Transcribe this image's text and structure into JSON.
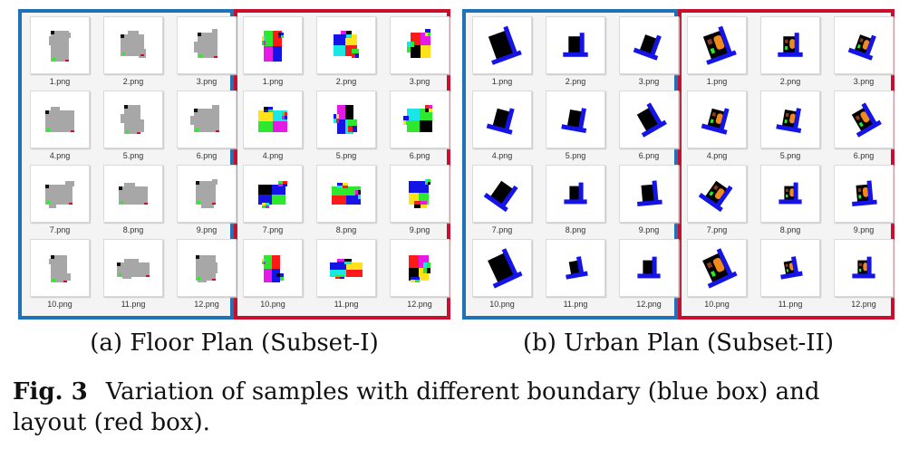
{
  "panel_a": {
    "caption": "(a) Floor Plan (Subset-I)",
    "boundary_group": {
      "frame_color": "#1f72b8",
      "files": [
        "1.png",
        "2.png",
        "3.png",
        "4.png",
        "5.png",
        "6.png",
        "7.png",
        "8.png",
        "9.png",
        "10.png",
        "11.png",
        "12.png"
      ]
    },
    "layout_group": {
      "frame_color": "#c8102e",
      "files": [
        "1.png",
        "2.png",
        "3.png",
        "4.png",
        "5.png",
        "6.png",
        "7.png",
        "8.png",
        "9.png",
        "10.png",
        "11.png",
        "12.png"
      ]
    }
  },
  "panel_b": {
    "caption": "(b) Urban Plan (Subset-II)",
    "boundary_group": {
      "frame_color": "#1f72b8",
      "files": [
        "1.png",
        "2.png",
        "3.png",
        "4.png",
        "5.png",
        "6.png",
        "7.png",
        "8.png",
        "9.png",
        "10.png",
        "11.png",
        "12.png"
      ]
    },
    "layout_group": {
      "frame_color": "#c8102e",
      "files": [
        "1.png",
        "2.png",
        "3.png",
        "4.png",
        "5.png",
        "6.png",
        "7.png",
        "8.png",
        "9.png",
        "10.png",
        "11.png",
        "12.png"
      ]
    }
  },
  "figure": {
    "label": "Fig. 3",
    "caption": "Variation of samples with different boundary (blue box) and layout (red box)."
  },
  "colors": {
    "blue_box": "#1f72b8",
    "red_box": "#c8102e",
    "floor_footprint": "#a7a7a7",
    "urban_boundary": "#1414e6",
    "urban_block": "#000000",
    "urban_building": "#f08a1e"
  }
}
